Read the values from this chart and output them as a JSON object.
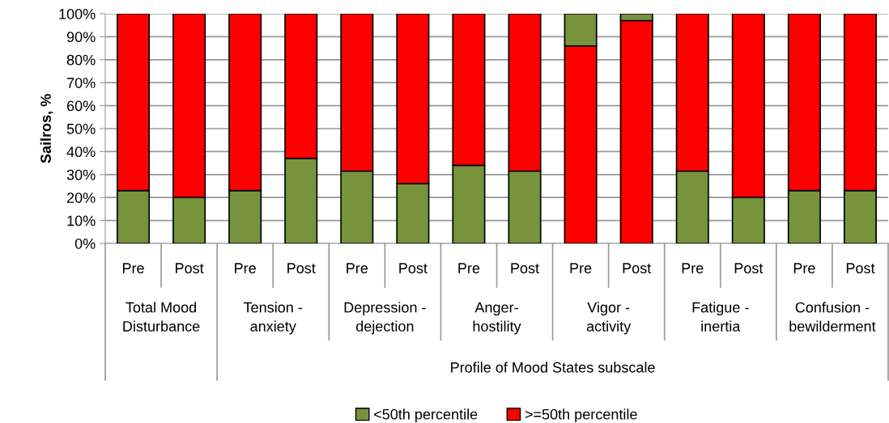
{
  "chart_data": {
    "type": "bar",
    "stacked": true,
    "ylabel": "Sailros, %",
    "categories": [
      "Pre",
      "Post",
      "Pre",
      "Post",
      "Pre",
      "Post",
      "Pre",
      "Post",
      "Pre",
      "Post",
      "Pre",
      "Post",
      "Pre",
      "Post"
    ],
    "annotations": [
      "Total Mood\nDisturbance",
      "Tension -\nanxiety",
      "Depression -\ndejection",
      "Anger-\nhostility",
      "Vigor -\nactivity",
      "Fatigue -\ninertia",
      "Confusion -\nbewilderment",
      "Profile of Mood States subscale"
    ],
    "series": [
      {
        "name": "<50th percentile",
        "color": "#77933c",
        "values": [
          23,
          20,
          23,
          37,
          31.5,
          26,
          34,
          31.5,
          0,
          0,
          31.5,
          20,
          23,
          23
        ]
      },
      {
        "name": ">=50th percentile",
        "color": "#ff0000",
        "values": [
          77,
          80,
          77,
          63,
          68.5,
          74,
          66,
          68.5,
          86,
          97,
          68.5,
          80,
          77,
          77
        ]
      },
      {
        "color": "#77933c",
        "values": [
          null,
          null,
          null,
          null,
          null,
          null,
          null,
          null,
          14,
          3,
          null,
          null,
          null,
          null
        ]
      }
    ],
    "ylim": [
      0,
      100
    ],
    "yticks": [
      {
        "value": 0,
        "label": "0%"
      },
      {
        "value": 10,
        "label": "10%"
      },
      {
        "value": 20,
        "label": "20%"
      },
      {
        "value": 30,
        "label": "30%"
      },
      {
        "value": 40,
        "label": "40%"
      },
      {
        "value": 50,
        "label": "50%"
      },
      {
        "value": 60,
        "label": "60%"
      },
      {
        "value": 70,
        "label": "70%"
      },
      {
        "value": 80,
        "label": "80%"
      },
      {
        "value": 90,
        "label": "90%"
      },
      {
        "value": 100,
        "label": "100%"
      }
    ],
    "grid": "y",
    "legend": "bottom"
  }
}
